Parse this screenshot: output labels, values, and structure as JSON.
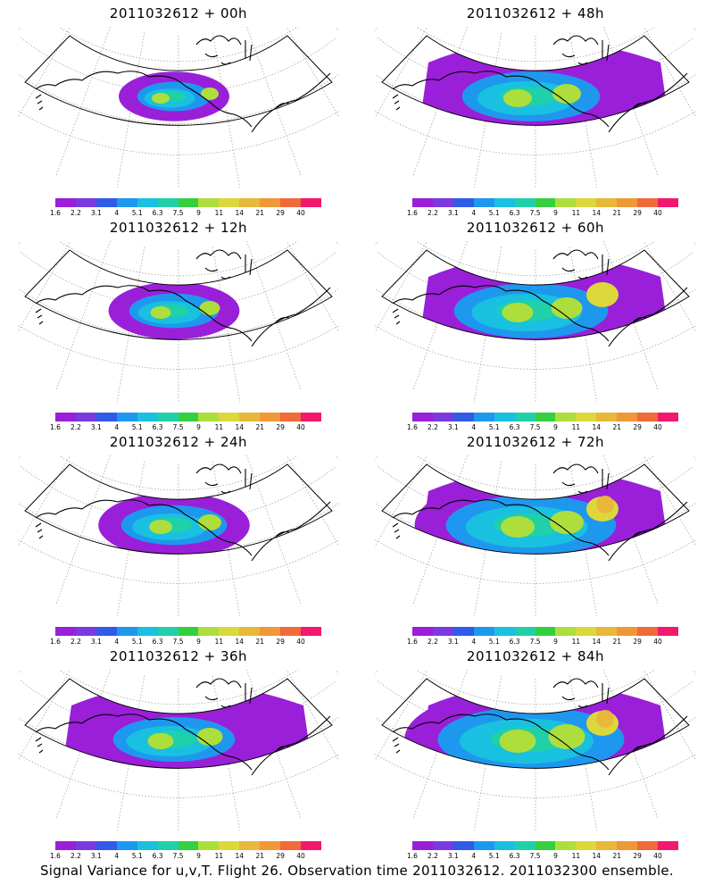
{
  "panels": [
    {
      "title": "2011032612 + 00h",
      "level": 0
    },
    {
      "title": "2011032612 + 48h",
      "level": 4
    },
    {
      "title": "2011032612 + 12h",
      "level": 1
    },
    {
      "title": "2011032612 + 60h",
      "level": 5
    },
    {
      "title": "2011032612 + 24h",
      "level": 2
    },
    {
      "title": "2011032612 + 72h",
      "level": 6
    },
    {
      "title": "2011032612 + 36h",
      "level": 3
    },
    {
      "title": "2011032612 + 84h",
      "level": 7
    }
  ],
  "colorbar": {
    "labels": [
      "1.6",
      "2.2",
      "3.1",
      "4",
      "5.1",
      "6.3",
      "7.5",
      "9",
      "11",
      "14",
      "21",
      "29",
      "40"
    ],
    "colors": [
      "#9a1fd8",
      "#7a3ae0",
      "#2f5be8",
      "#1e98ee",
      "#19c0e0",
      "#1fd0a8",
      "#35d040",
      "#aede3c",
      "#dcd83c",
      "#e8b83a",
      "#f09838",
      "#f06a3a",
      "#f2186e"
    ]
  },
  "footer": "Signal Variance for u,v,T. Flight 26. Observation time 2011032612. 2011032300 ensemble."
}
